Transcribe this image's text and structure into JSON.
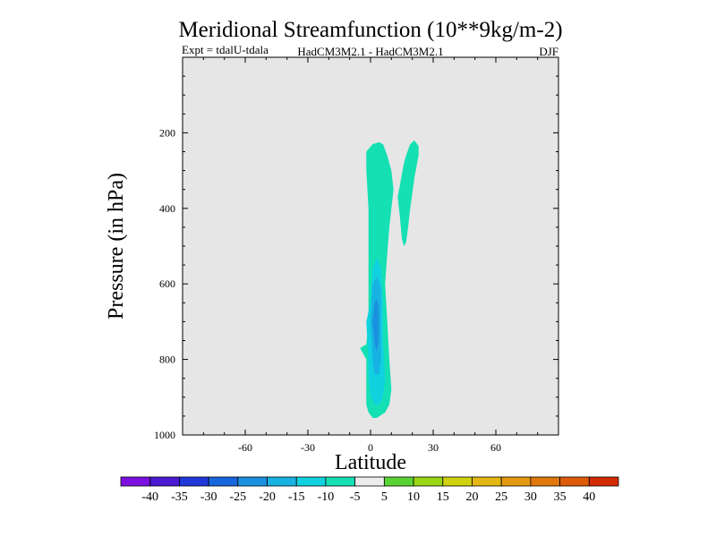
{
  "chart_data": {
    "type": "contour",
    "title": "Meridional Streamfunction (10**9kg/m-2)",
    "subtitle_left": "Expt = tdalU-tdala",
    "subtitle_center": "HadCM3M2.1 - HadCM3M2.1",
    "subtitle_right": "DJF",
    "xlabel": "Latitude",
    "ylabel": "Pressure (in hPa)",
    "xlim": [
      -90,
      90
    ],
    "ylim": [
      1000,
      0
    ],
    "xticks": [
      -60,
      -30,
      0,
      30,
      60
    ],
    "yticks": [
      200,
      400,
      600,
      800,
      1000
    ],
    "background_color": "#e6e6e6",
    "levels": [
      {
        "label": "-40",
        "color": "#7d10e0"
      },
      {
        "label": "-35",
        "color": "#4b19d2"
      },
      {
        "label": "-30",
        "color": "#2037da"
      },
      {
        "label": "-25",
        "color": "#1866dd"
      },
      {
        "label": "-20",
        "color": "#1a90e0"
      },
      {
        "label": "-15",
        "color": "#18b2e2"
      },
      {
        "label": "-10",
        "color": "#10d2df"
      },
      {
        "label": "-5",
        "color": "#14e0b4"
      },
      {
        "label": "5",
        "color": "#ececec"
      },
      {
        "label": "10",
        "color": "#5ad432"
      },
      {
        "label": "15",
        "color": "#9bd616"
      },
      {
        "label": "20",
        "color": "#cfd20c"
      },
      {
        "label": "25",
        "color": "#e4b712"
      },
      {
        "label": "30",
        "color": "#e49a10"
      },
      {
        "label": "35",
        "color": "#e0780c"
      },
      {
        "label": "40",
        "color": "#dc5a08"
      },
      {
        "label": "",
        "color": "#d42a02"
      }
    ],
    "regions": [
      {
        "name": "negative-cell-outer",
        "color": "#14e0b4",
        "polygon": [
          [
            -4,
            780
          ],
          [
            -5,
            770
          ],
          [
            -2,
            760
          ],
          [
            -1,
            700
          ],
          [
            -1,
            600
          ],
          [
            -1,
            500
          ],
          [
            -1,
            400
          ],
          [
            -2,
            300
          ],
          [
            -2,
            250
          ],
          [
            1,
            230
          ],
          [
            4,
            225
          ],
          [
            6,
            230
          ],
          [
            8,
            260
          ],
          [
            10,
            300
          ],
          [
            11,
            350
          ],
          [
            10,
            400
          ],
          [
            9,
            450
          ],
          [
            8,
            520
          ],
          [
            7,
            600
          ],
          [
            8,
            700
          ],
          [
            9,
            800
          ],
          [
            10,
            880
          ],
          [
            9,
            920
          ],
          [
            7,
            940
          ],
          [
            3,
            955
          ],
          [
            1,
            955
          ],
          [
            -1,
            940
          ],
          [
            -2,
            920
          ],
          [
            -2,
            880
          ],
          [
            -2,
            840
          ],
          [
            -2,
            800
          ]
        ]
      },
      {
        "name": "negative-cell-inner",
        "color": "#10d2df",
        "polygon": [
          [
            0,
            650
          ],
          [
            1,
            560
          ],
          [
            3,
            530
          ],
          [
            5,
            560
          ],
          [
            6,
            650
          ],
          [
            6,
            750
          ],
          [
            7,
            850
          ],
          [
            6,
            900
          ],
          [
            4,
            920
          ],
          [
            2,
            920
          ],
          [
            0,
            895
          ],
          [
            -1,
            850
          ],
          [
            -1,
            800
          ],
          [
            -2,
            700
          ]
        ]
      },
      {
        "name": "negative-cell-core",
        "color": "#18b2e2",
        "polygon": [
          [
            1,
            600
          ],
          [
            3,
            580
          ],
          [
            5,
            610
          ],
          [
            5,
            700
          ],
          [
            5,
            800
          ],
          [
            4,
            840
          ],
          [
            2,
            840
          ],
          [
            1,
            800
          ],
          [
            0,
            700
          ]
        ]
      },
      {
        "name": "negative-cell-max",
        "color": "#1a90e0",
        "polygon": [
          [
            2,
            650
          ],
          [
            3,
            640
          ],
          [
            4,
            660
          ],
          [
            4,
            750
          ],
          [
            3,
            780
          ],
          [
            2,
            760
          ],
          [
            1,
            700
          ]
        ]
      },
      {
        "name": "positive-lobe",
        "color": "#14e0b4",
        "polygon": [
          [
            19,
            230
          ],
          [
            21,
            220
          ],
          [
            23,
            235
          ],
          [
            23,
            260
          ],
          [
            22,
            290
          ],
          [
            21,
            320
          ],
          [
            20,
            360
          ],
          [
            19,
            400
          ],
          [
            18,
            450
          ],
          [
            17,
            490
          ],
          [
            16,
            500
          ],
          [
            15,
            480
          ],
          [
            14,
            420
          ],
          [
            13,
            370
          ],
          [
            14,
            340
          ],
          [
            15,
            310
          ],
          [
            16,
            280
          ],
          [
            17,
            260
          ]
        ]
      }
    ]
  }
}
